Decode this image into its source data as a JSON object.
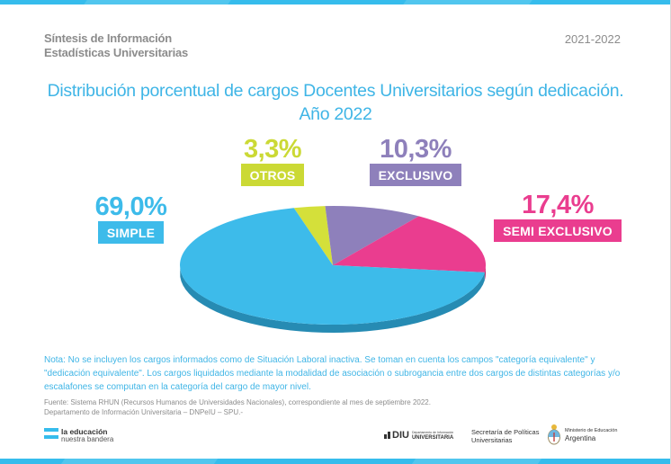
{
  "header": {
    "line1": "Síntesis de Información",
    "line2": "Estadísticas Universitarias",
    "period": "2021-2022"
  },
  "chart_data": {
    "type": "pie",
    "style": "3d-tilted",
    "title_line1": "Distribución porcentual de cargos Docentes Universitarios según dedicación.",
    "title_line2": "Año 2022",
    "unit": "%",
    "slices": [
      {
        "key": "simple",
        "label": "SIMPLE",
        "value": 69.0,
        "display": "69,0%",
        "color": "#3dbbea",
        "side_color": "#268bb3"
      },
      {
        "key": "otros",
        "label": "OTROS",
        "value": 3.3,
        "display": "3,3%",
        "color": "#d4e03a",
        "side_color": "#a9b22c"
      },
      {
        "key": "exclusivo",
        "label": "EXCLUSIVO",
        "value": 10.3,
        "display": "10,3%",
        "color": "#8e80bb",
        "side_color": "#6e6296"
      },
      {
        "key": "semi_exclusivo",
        "label": "SEMI EXCLUSIVO",
        "value": 17.4,
        "display": "17,4%",
        "color": "#ea3d8f",
        "side_color": "#b82e6f"
      }
    ],
    "label_colors": {
      "simple": "#3dbbea",
      "otros": "#cbd935",
      "exclusivo": "#8e80bb",
      "semi_exclusivo": "#ea3d8f"
    }
  },
  "footer": {
    "note": "Nota: No se incluyen los cargos informados como de Situación Laboral inactiva. Se toman en cuenta los campos \"categoría equivalente\" y \"dedicación equivalente\". Los cargos liquidados mediante la modalidad de asociación o subrogancia entre dos cargos de distintas categorías y/o escalafones se computan en la categoría del cargo de mayor nivel.",
    "source_line1": "Fuente: Sistema RHUN (Recursos Humanos de Universidades Nacionales), correspondiente al mes de septiembre 2022.",
    "source_line2": "Departamento de Información Universitaria – DNPeIU – SPU.-"
  },
  "logos": {
    "edu_line1": "la educación",
    "edu_line2": "nuestra bandera",
    "diu_main": "DIU",
    "diu_sub1": "Departamento de Información",
    "diu_sub2": "UNIVERSITARIA",
    "spu_line1": "Secretaría de Políticas",
    "spu_line2": "Universitarias",
    "min_line1": "Ministerio de Educación",
    "min_line2": "Argentina"
  }
}
